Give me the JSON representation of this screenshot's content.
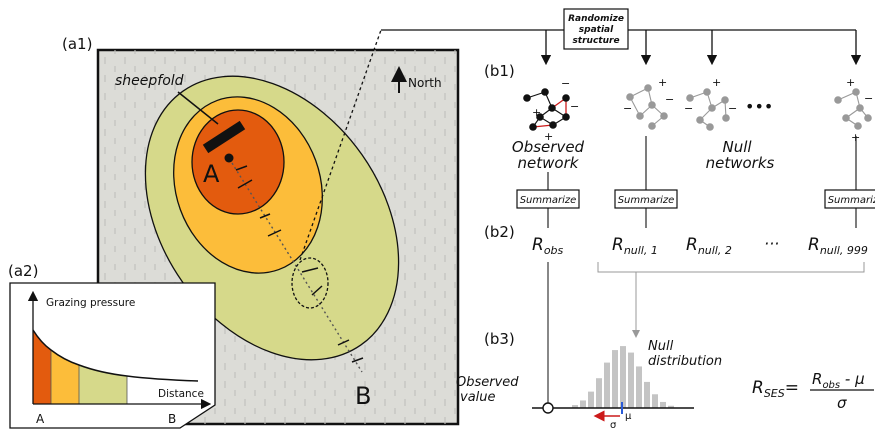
{
  "panels": {
    "a1": "(a1)",
    "a2": "(a2)",
    "b1": "(b1)",
    "b2": "(b2)",
    "b3": "(b3)"
  },
  "map": {
    "north": "North",
    "sheepfold": "sheepfold",
    "point_a": "A",
    "point_b": "B",
    "zone_colors": [
      "#e35b0e",
      "#fcbd3a",
      "#d6d98a"
    ],
    "background": "#dcdcd7"
  },
  "inset": {
    "ylabel": "Grazing pressure",
    "xlabel": "Distance",
    "x_start": "A",
    "x_end": "B"
  },
  "randomize": {
    "line1": "Randomize",
    "line2": "spatial",
    "line3": "structure"
  },
  "networks": {
    "observed_line1": "Observed",
    "observed_line2": "network",
    "null_line1": "Null",
    "null_line2": "networks",
    "ellipsis": "•••",
    "plus": "+",
    "minus": "−"
  },
  "summarize": "Summarize",
  "stats": {
    "r_symbol": "R",
    "obs_sub": "obs",
    "null1_sub": "null, 1",
    "null2_sub": "null, 2",
    "dots": "···",
    "null999_sub": "null, 999"
  },
  "distribution": {
    "title_line1": "Null",
    "title_line2": "distribution",
    "observed_line1": "Observed",
    "observed_line2": "value",
    "mu": "μ",
    "sigma": "σ"
  },
  "formula": {
    "lhs_sub": "SES",
    "equals": "=",
    "numerator_sub": "obs",
    "numerator_rest": " - μ",
    "denominator": "σ"
  }
}
